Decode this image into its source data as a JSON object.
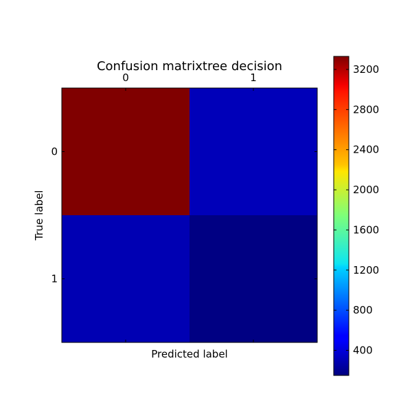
{
  "chart_data": {
    "type": "heatmap",
    "title": "Confusion matrixtree decision",
    "xlabel": "Predicted label",
    "ylabel": "True label",
    "x_ticklabels": [
      "0",
      "1"
    ],
    "y_ticklabels": [
      "0",
      "1"
    ],
    "values": [
      [
        3330,
        330
      ],
      [
        310,
        160
      ]
    ],
    "colormap": "jet",
    "colorbar": {
      "range": [
        150,
        3330
      ],
      "ticks": [
        400,
        800,
        1200,
        1600,
        2000,
        2400,
        2800,
        3200
      ],
      "tick_labels": [
        "400",
        "800",
        "1200",
        "1600",
        "2000",
        "2400",
        "2800",
        "3200"
      ]
    },
    "grid": false
  }
}
